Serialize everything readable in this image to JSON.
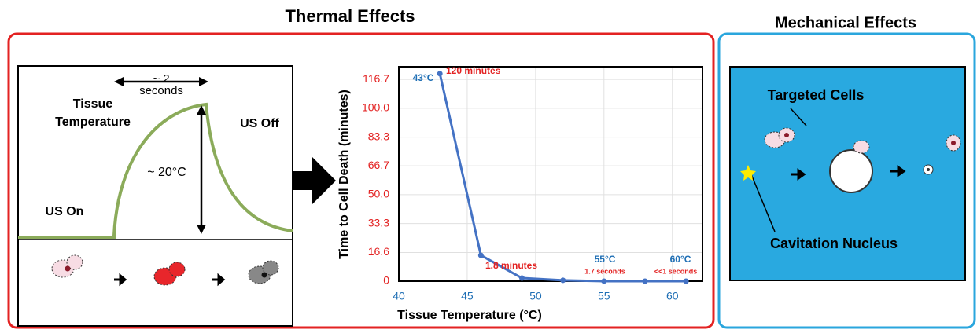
{
  "headings": {
    "thermal": "Thermal Effects",
    "mechanical": "Mechanical Effects"
  },
  "diagram": {
    "duration": "~ 2",
    "duration_unit": "seconds",
    "curve_label_1": "Tissue",
    "curve_label_2": "Temperature",
    "us_off": "US Off",
    "rise": "~ 20°C",
    "us_on": "US On"
  },
  "mechanical": {
    "targeted": "Targeted Cells",
    "nucleus": "Cavitation Nucleus"
  },
  "chart_data": {
    "type": "line",
    "color": "#4472c4",
    "x": [
      43,
      46,
      49,
      52,
      55,
      58,
      61
    ],
    "values": [
      120,
      15,
      1.8,
      0.5,
      0.028,
      0.01,
      0.01
    ],
    "xlim": [
      40,
      62.2
    ],
    "ylim": [
      0,
      124
    ],
    "xticks": [
      40,
      45,
      50,
      55,
      60
    ],
    "yticks": [
      0,
      16.6,
      33.3,
      {
        "value": 50,
        "label": "50.0"
      },
      66.7,
      83.3,
      {
        "value": 100,
        "label": "100.0"
      },
      116.7
    ],
    "xlabel": "Tissue Temperature (°C)",
    "ylabel": "Time to Cell Death (minutes)",
    "grid": true,
    "annotations": [
      "43°C",
      "120 minutes",
      "1.8 minutes",
      "55°C",
      "1.7 seconds",
      "60°C",
      "<<1 seconds"
    ]
  }
}
